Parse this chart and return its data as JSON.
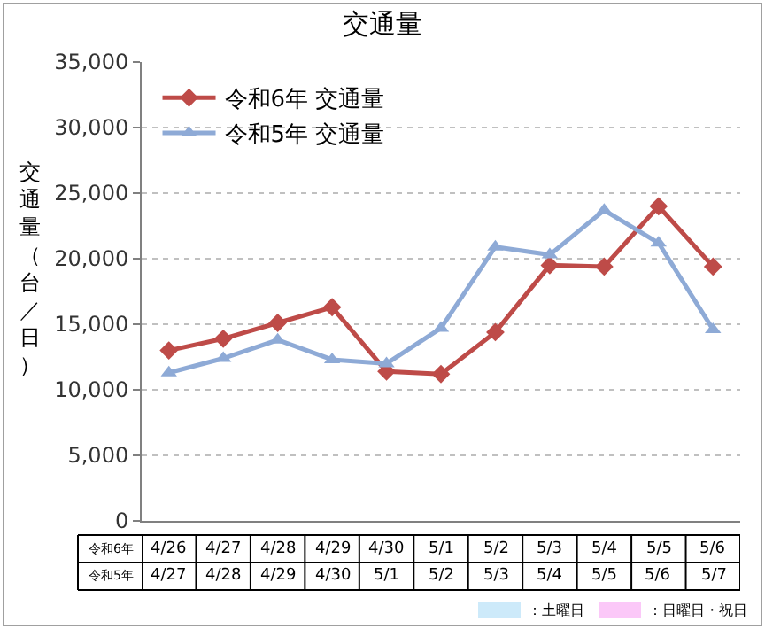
{
  "chart_data": {
    "type": "line",
    "title": "交通量",
    "ylabel": "交通量（台／日）",
    "categories": [
      "4/26",
      "4/27",
      "4/28",
      "4/29",
      "4/30",
      "5/1",
      "5/2",
      "5/3",
      "5/4",
      "5/5",
      "5/6"
    ],
    "series": [
      {
        "name": "令和6年 交通量",
        "color": "#be4b48",
        "marker": "diamond",
        "values": [
          13000,
          13900,
          15100,
          16300,
          11400,
          11200,
          14400,
          19500,
          19400,
          24000,
          19400
        ]
      },
      {
        "name": "令和5年 交通量",
        "color": "#8eaad6",
        "marker": "triangle",
        "values": [
          11300,
          12400,
          13800,
          12300,
          12000,
          14700,
          20900,
          20300,
          23700,
          21200,
          14600
        ]
      }
    ],
    "ylim": [
      0,
      35000
    ],
    "yticks": [
      {
        "value": 0,
        "label": "0"
      },
      {
        "value": 5000,
        "label": "5,000"
      },
      {
        "value": 10000,
        "label": "10,000"
      },
      {
        "value": 15000,
        "label": "15,000"
      },
      {
        "value": 20000,
        "label": "20,000"
      },
      {
        "value": 25000,
        "label": "25,000"
      },
      {
        "value": 30000,
        "label": "30,000"
      },
      {
        "value": 35000,
        "label": "35,000"
      }
    ],
    "grid": "y",
    "legend": "top left",
    "line_style": "solid",
    "annotations": [
      "令和6年",
      "令和5年",
      "4/27",
      "4/28",
      "4/29",
      "4/30",
      "5/1",
      "5/2",
      "5/3",
      "5/4",
      "5/5",
      "5/6",
      "5/7",
      "：土曜日",
      "：日曜日・祝日"
    ]
  }
}
